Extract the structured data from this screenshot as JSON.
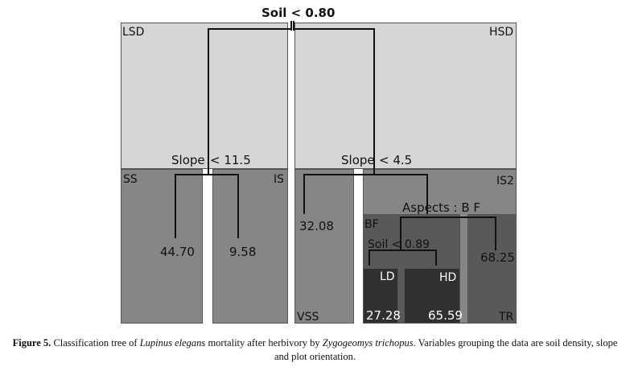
{
  "title": "Soil < 0.80",
  "regions": {
    "lsd": "LSD",
    "hsd": "HSD",
    "ss": "SS",
    "is": "IS",
    "vss": "VSS",
    "is2": "IS2",
    "bf": "BF",
    "tr": "TR",
    "ld": "LD",
    "hd": "HD"
  },
  "splits": {
    "slope_left": "Slope",
    "slope_left_val": "< 11.5",
    "slope_right": "Slope",
    "slope_right_val": "< 4.5",
    "aspects": "Aspects : B F",
    "soil_inner": "Soil < 0.89"
  },
  "leaves": {
    "ss_value": "44.70",
    "is_value": "9.58",
    "vss_value": "32.08",
    "bf_right_value": "68.25",
    "ld_value": "27.28",
    "hd_value": "65.59"
  },
  "colors": {
    "top_region": "#d6d6d6",
    "mid_region": "#868686",
    "dark_region": "#575757",
    "leaf_region": "#303030"
  },
  "caption": {
    "label": "Figure 5.",
    "text_1": "Classification tree of",
    "species": "Lupinus elegans",
    "text_2": "mortality after herbivory by",
    "herbivore": "Zygogeomys trichopus",
    "text_3": ". Variables grouping the data are soil density, slope and plot orientation."
  }
}
